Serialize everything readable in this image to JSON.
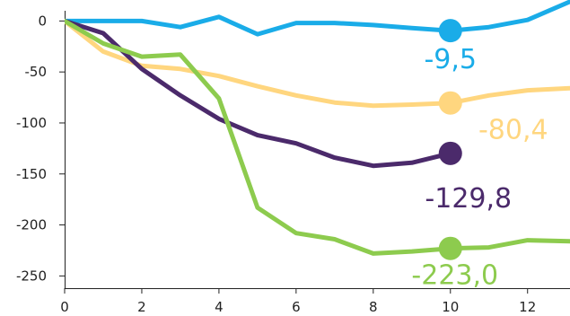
{
  "chart_data": {
    "type": "line",
    "title": "",
    "xlabel": "",
    "ylabel": "",
    "xlim": [
      0,
      13.1
    ],
    "ylim": [
      -262,
      10
    ],
    "x_ticks": [
      "0",
      "2",
      "4",
      "6",
      "8",
      "10",
      "12"
    ],
    "y_ticks": [
      "0",
      "-50",
      "-100",
      "-150",
      "-200",
      "-250"
    ],
    "grid": false,
    "legend": "none",
    "series": [
      {
        "color": "#1aace8",
        "x": [
          0,
          1,
          2,
          3,
          4,
          5,
          6,
          7,
          8,
          9,
          10,
          11,
          12,
          13.1
        ],
        "values": [
          0,
          0,
          0,
          -6,
          4,
          -13,
          -2,
          -2,
          -4,
          -7,
          -9.5,
          -6,
          1,
          19
        ],
        "marker_x": 10,
        "marker_value": -9.5,
        "label": "-9,5"
      },
      {
        "color": "#ffd67f",
        "x": [
          0,
          1,
          2,
          3,
          4,
          5,
          6,
          7,
          8,
          9,
          10,
          11,
          12,
          13.1
        ],
        "values": [
          0,
          -30,
          -44,
          -47,
          -54,
          -64,
          -73,
          -80,
          -83,
          -82,
          -80.4,
          -73,
          -68,
          -66
        ],
        "marker_x": 10,
        "marker_value": -80.4,
        "label": "-80,4"
      },
      {
        "color": "#4b2a6b",
        "x": [
          0,
          1,
          2,
          3,
          4,
          5,
          6,
          7,
          8,
          9,
          10
        ],
        "values": [
          0,
          -12,
          -47,
          -73,
          -96,
          -112,
          -120,
          -134,
          -142,
          -139,
          -129.8
        ],
        "marker_x": 10,
        "marker_value": -129.8,
        "label": "-129,8"
      },
      {
        "color": "#8dcb4e",
        "x": [
          0,
          1,
          2,
          3,
          4,
          5,
          6,
          7,
          8,
          9,
          10,
          11,
          12,
          13.1
        ],
        "values": [
          0,
          -22,
          -35,
          -33,
          -76,
          -183,
          -208,
          -214,
          -228,
          -226,
          -223.0,
          -222,
          -215,
          -216
        ],
        "marker_x": 10,
        "marker_value": -223.0,
        "label": "-223,0"
      }
    ]
  }
}
